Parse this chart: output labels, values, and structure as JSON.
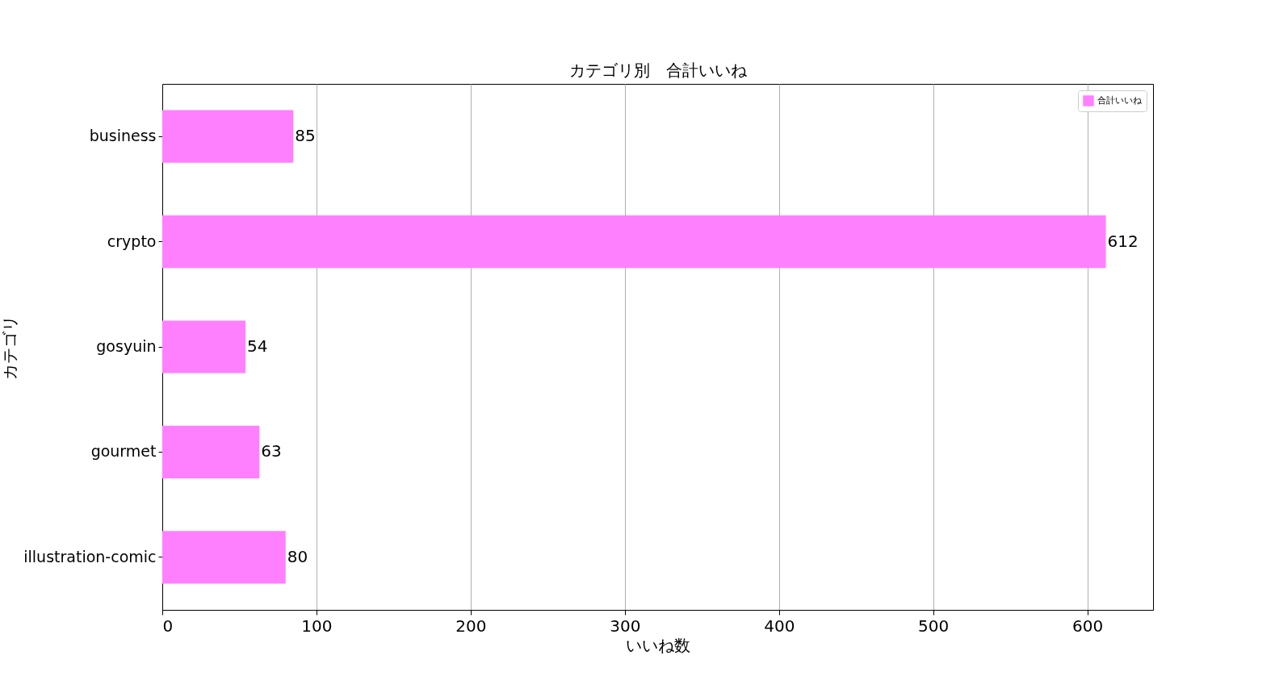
{
  "chart_data": {
    "type": "bar",
    "orientation": "horizontal",
    "title": "カテゴリ別　合計いいね",
    "xlabel": "いいね数",
    "ylabel": "カテゴリ",
    "categories": [
      "business",
      "crypto",
      "gosyuin",
      "gourmet",
      "illustration-comic"
    ],
    "series": [
      {
        "name": "合計いいね",
        "color": "#ff80ff",
        "values": [
          85,
          612,
          54,
          63,
          80
        ]
      }
    ],
    "xlim": [
      0,
      642.6
    ],
    "xticks": [
      0,
      100,
      200,
      300,
      400,
      500,
      600
    ],
    "grid": "x",
    "legend": "top right",
    "data_labels": true
  }
}
